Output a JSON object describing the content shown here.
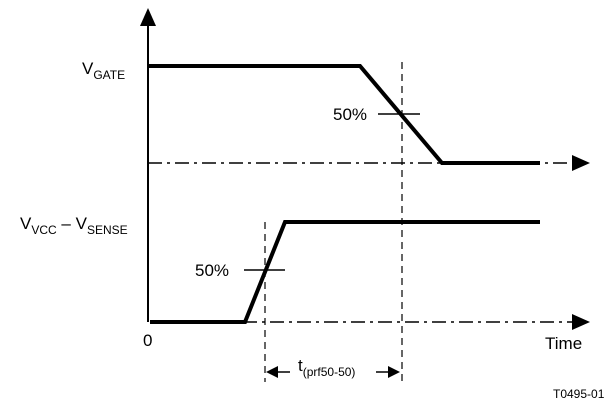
{
  "labels": {
    "v_gate_main": "V",
    "v_gate_sub": "GATE",
    "v_vcc_main": "V",
    "v_vcc_sub": "VCC",
    "minus": " – ",
    "v_sense_main": "V",
    "v_sense_sub": "SENSE",
    "origin": "0",
    "time_axis": "Time",
    "pct_upper": "50%",
    "pct_lower": "50%",
    "interval_main": "t",
    "interval_sub": "(prf50-50)",
    "figure_id": "T0495-01"
  }
}
